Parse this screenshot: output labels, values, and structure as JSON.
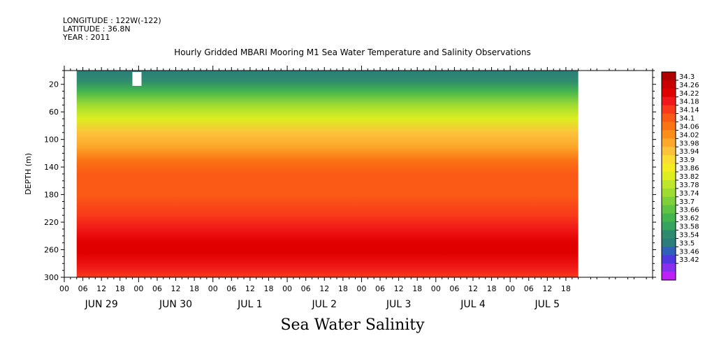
{
  "header": {
    "longitude": "LONGITUDE : 122W(-122)",
    "latitude": "LATITUDE : 36.8N",
    "year": "YEAR : 2011"
  },
  "chart_data": {
    "type": "heatmap",
    "title": "Hourly Gridded MBARI Mooring M1 Sea Water Temperature and Salinity Observations",
    "variable_label": "Sea Water Salinity",
    "ylabel": "DEPTH (m)",
    "xlabel": "",
    "y_axis": {
      "ylim": [
        300,
        0
      ],
      "ticks": [
        20,
        60,
        100,
        140,
        180,
        220,
        260,
        300
      ],
      "inverted": true
    },
    "x_axis": {
      "hour_tick_labels": [
        "00",
        "06",
        "12",
        "18"
      ],
      "days": [
        {
          "label": "JUN 29",
          "index": 0
        },
        {
          "label": "JUN 30",
          "index": 1
        },
        {
          "label": "JUL  1",
          "index": 2
        },
        {
          "label": "JUL  2",
          "index": 3
        },
        {
          "label": "JUL  3",
          "index": 4
        },
        {
          "label": "JUL  4",
          "index": 5
        },
        {
          "label": "JUL  5",
          "index": 6
        }
      ],
      "data_start_hour": 4,
      "data_end_hour": 166
    },
    "colorbar": {
      "labels": [
        "34.3",
        "34.26",
        "34.22",
        "34.18",
        "34.14",
        "34.1",
        "34.06",
        "34.02",
        "33.98",
        "33.94",
        "33.9",
        "33.86",
        "33.82",
        "33.78",
        "33.74",
        "33.7",
        "33.66",
        "33.62",
        "33.58",
        "33.54",
        "33.5",
        "33.46",
        "33.42"
      ],
      "levels": [
        34.3,
        34.26,
        34.22,
        34.18,
        34.14,
        34.1,
        34.06,
        34.02,
        33.98,
        33.94,
        33.9,
        33.86,
        33.82,
        33.78,
        33.74,
        33.7,
        33.66,
        33.62,
        33.58,
        33.54,
        33.5,
        33.46,
        33.42
      ],
      "colors": [
        "#b00000",
        "#c80000",
        "#e00000",
        "#f01818",
        "#f83a1a",
        "#fa5a16",
        "#fb7414",
        "#fc8e1a",
        "#fca82a",
        "#fcc23a",
        "#fcdc32",
        "#f4ec20",
        "#dcee20",
        "#bee62a",
        "#9edc32",
        "#7ed03a",
        "#5ec442",
        "#44b44e",
        "#34a45e",
        "#2e8c6e",
        "#2c7e7a",
        "#3060b8",
        "#5038e0",
        "#8a2ef0",
        "#c020f8"
      ]
    },
    "salinity_profile": [
      {
        "depth": 0,
        "value": 33.52
      },
      {
        "depth": 15,
        "value": 33.56
      },
      {
        "depth": 30,
        "value": 33.64
      },
      {
        "depth": 50,
        "value": 33.74
      },
      {
        "depth": 70,
        "value": 33.84
      },
      {
        "depth": 90,
        "value": 33.94
      },
      {
        "depth": 110,
        "value": 34.0
      },
      {
        "depth": 130,
        "value": 34.06
      },
      {
        "depth": 150,
        "value": 34.1
      },
      {
        "depth": 180,
        "value": 34.1
      },
      {
        "depth": 210,
        "value": 34.14
      },
      {
        "depth": 230,
        "value": 34.2
      },
      {
        "depth": 250,
        "value": 34.24
      },
      {
        "depth": 265,
        "value": 34.24
      },
      {
        "depth": 285,
        "value": 34.2
      },
      {
        "depth": 300,
        "value": 34.16
      }
    ]
  }
}
